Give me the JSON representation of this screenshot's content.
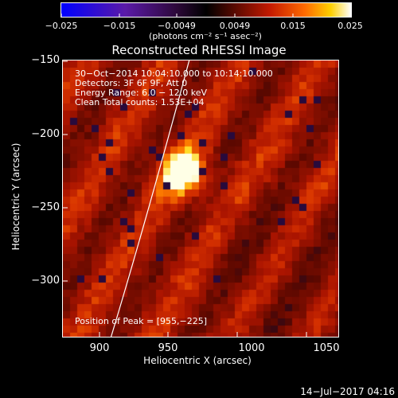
{
  "colorbar": {
    "ticks": [
      "−0.025",
      "−0.015",
      "−0.0049",
      "0.0049",
      "0.015",
      "0.025"
    ],
    "units": "(photons cm⁻² s⁻¹ asec⁻²)"
  },
  "title": "Reconstructed RHESSI Image",
  "info": {
    "line1": "30−Oct−2014 10:04:10.000 to 10:14:10.000",
    "line2": "Detectors: 3F 6F 9F, Att 0",
    "line3": "Energy Range: 6.0 − 12.0 keV",
    "line4": "Clean     Total counts: 1.53E+04",
    "peak": "Position of Peak = [955,−225]"
  },
  "axes": {
    "xlabel": "Heliocentric X (arcsec)",
    "ylabel": "Heliocentric Y (arcsec)",
    "xticks": [
      "900",
      "950",
      "1000",
      "1050"
    ],
    "yticks": [
      "−150",
      "−200",
      "−250",
      "−300"
    ]
  },
  "footer": {
    "date": "14−Jul−2017 04:16"
  }
}
